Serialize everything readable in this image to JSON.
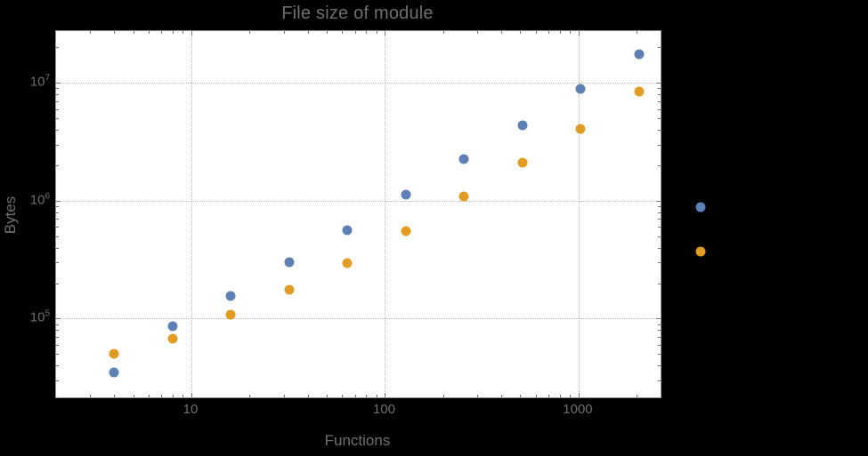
{
  "chart_data": {
    "type": "scatter",
    "title": "File size of module",
    "xlabel": "Functions",
    "ylabel": "Bytes",
    "x_scale": "log",
    "y_scale": "log",
    "xlim": [
      2.0,
      2650
    ],
    "ylim": [
      21500,
      27500000
    ],
    "grid": "dotted lines at major ticks, both axes",
    "legend_position": "right-center, outside frame, markers only (no visible labels)",
    "x_ticks": [
      {
        "value": 10,
        "label": "10"
      },
      {
        "value": 100,
        "label": "100"
      },
      {
        "value": 1000,
        "label": "1000"
      }
    ],
    "y_ticks": [
      {
        "value": 100000,
        "base": "10",
        "exp": "5"
      },
      {
        "value": 1000000,
        "base": "10",
        "exp": "6"
      },
      {
        "value": 10000000,
        "base": "10",
        "exp": "7"
      }
    ],
    "series": [
      {
        "name": "series-blue",
        "color": "#5e81b5",
        "points": [
          [
            4,
            35000
          ],
          [
            8,
            86000
          ],
          [
            16,
            155000
          ],
          [
            32,
            300000
          ],
          [
            64,
            560000
          ],
          [
            128,
            1120000
          ],
          [
            256,
            2250000
          ],
          [
            512,
            4400000
          ],
          [
            1024,
            8900000
          ],
          [
            2048,
            17500000
          ]
        ]
      },
      {
        "name": "series-orange",
        "color": "#e19c24",
        "points": [
          [
            4,
            50000
          ],
          [
            8,
            68000
          ],
          [
            16,
            108000
          ],
          [
            32,
            175000
          ],
          [
            64,
            295000
          ],
          [
            128,
            550000
          ],
          [
            256,
            1080000
          ],
          [
            512,
            2100000
          ],
          [
            1024,
            4050000
          ],
          [
            2048,
            8500000
          ]
        ]
      }
    ],
    "legend_markers": [
      {
        "series": "series-blue",
        "color": "#5e81b5"
      },
      {
        "series": "series-orange",
        "color": "#e19c24"
      }
    ]
  },
  "colors": {
    "background": "#000000",
    "plot_background": "#ffffff",
    "frame": "#8f8f8f",
    "grid": "#b8b8b8",
    "ticks": "#757575",
    "labels": "#6e6e6e",
    "series_blue": "#5e81b5",
    "series_orange": "#e19c24"
  }
}
